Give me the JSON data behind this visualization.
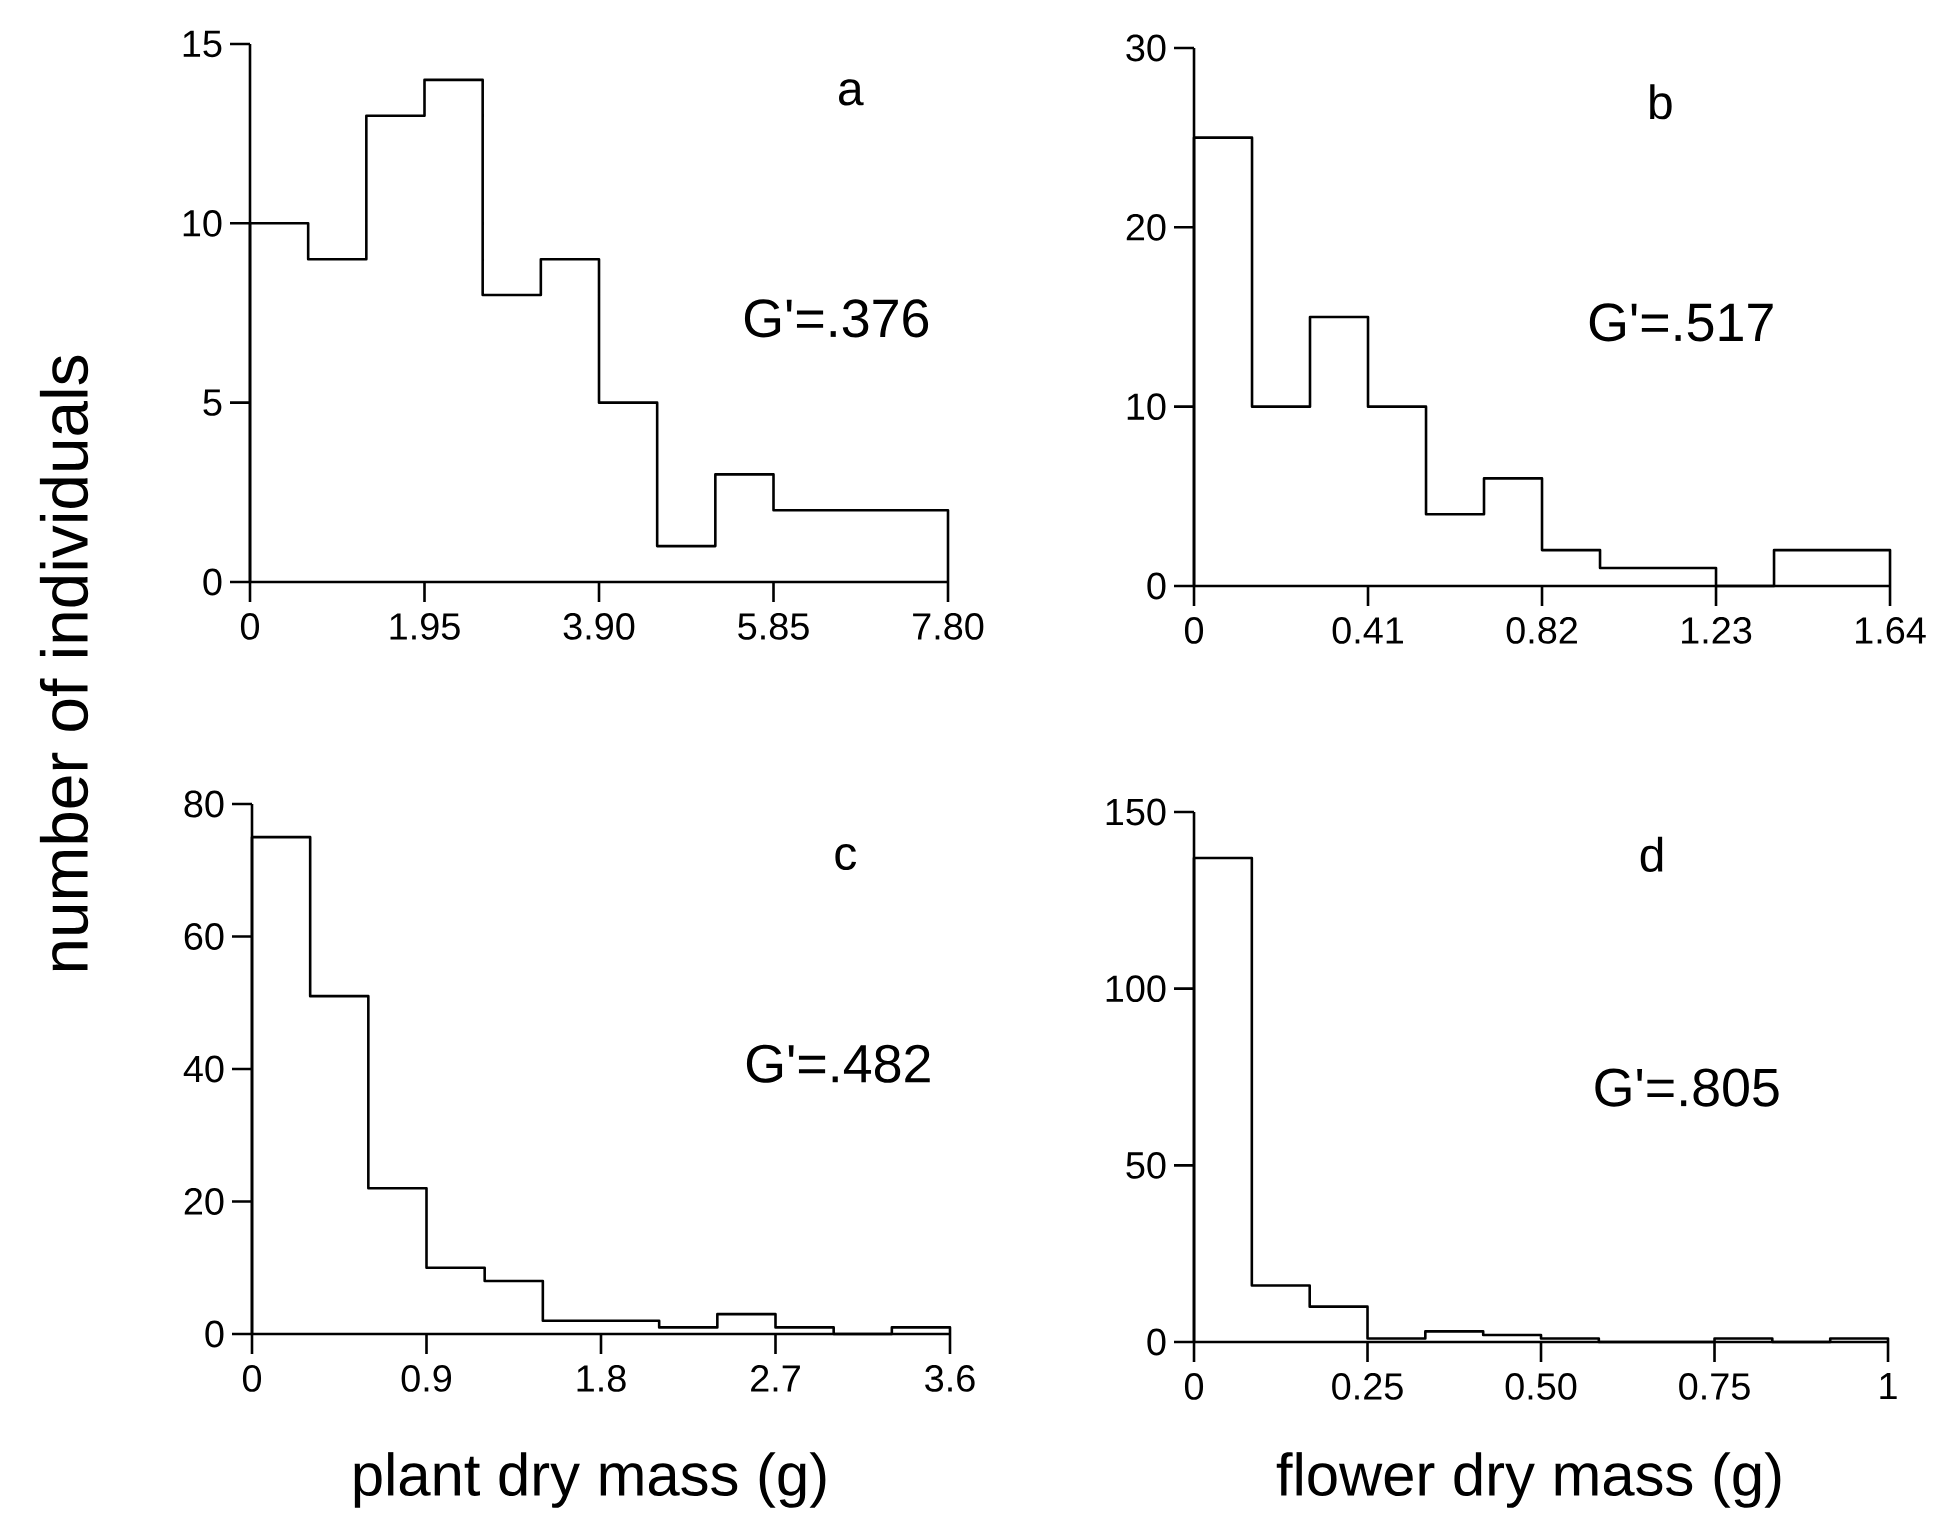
{
  "chart_data": [
    {
      "type": "histogram",
      "title": "a",
      "ylabel": "number of individuals",
      "annotations": [
        "G'=.376"
      ],
      "color": "#000000",
      "bins": [
        0,
        0.65,
        1.3,
        1.95,
        2.6,
        3.25,
        3.9,
        4.55,
        5.2,
        5.85,
        6.5,
        7.15,
        7.8
      ],
      "values": [
        10,
        9,
        13,
        14,
        8,
        9,
        5,
        1,
        3,
        2,
        2,
        2
      ],
      "xlim": [
        0,
        7.8
      ],
      "ylim": [
        0,
        15
      ],
      "xticks": [
        0,
        1.95,
        {
          "value": 3.9,
          "label": "3.90"
        },
        5.85,
        {
          "value": 7.8,
          "label": "7.80"
        }
      ],
      "yticks": [
        0,
        5,
        10,
        15
      ]
    },
    {
      "type": "histogram",
      "title": "b",
      "annotations": [
        "G'=.517"
      ],
      "color": "#000000",
      "bins": [
        0,
        0.1367,
        0.2733,
        0.41,
        0.5467,
        0.6833,
        0.82,
        0.9567,
        1.0933,
        1.23,
        1.3667,
        1.5033,
        1.64
      ],
      "values": [
        25,
        10,
        15,
        10,
        4,
        6,
        2,
        1,
        1,
        0,
        2,
        2
      ],
      "xlim": [
        0,
        1.64
      ],
      "ylim": [
        0,
        30
      ],
      "xticks": [
        0,
        0.41,
        0.82,
        1.23,
        1.64
      ],
      "yticks": [
        0,
        10,
        20,
        30
      ]
    },
    {
      "type": "histogram",
      "title": "c",
      "xlabel": "plant dry mass (g)",
      "annotations": [
        "G'=.482"
      ],
      "color": "#000000",
      "bins": [
        0,
        0.3,
        0.6,
        0.9,
        1.2,
        1.5,
        1.8,
        2.1,
        2.4,
        2.7,
        3.0,
        3.3,
        3.6
      ],
      "values": [
        75,
        51,
        22,
        10,
        8,
        2,
        2,
        1,
        3,
        1,
        0,
        1
      ],
      "xlim": [
        0,
        3.6
      ],
      "ylim": [
        0,
        80
      ],
      "xticks": [
        0,
        0.9,
        1.8,
        2.7,
        3.6
      ],
      "yticks": [
        0,
        20,
        40,
        60,
        80
      ]
    },
    {
      "type": "histogram",
      "title": "d",
      "xlabel": "flower dry mass (g)",
      "annotations": [
        "G'=.805"
      ],
      "color": "#000000",
      "bins": [
        0,
        0.0833,
        0.1667,
        0.25,
        0.3333,
        0.4167,
        0.5,
        0.5833,
        0.6667,
        0.75,
        0.8333,
        0.9167,
        1
      ],
      "values": [
        137,
        16,
        10,
        1,
        3,
        2,
        1,
        0,
        0,
        1,
        0,
        1
      ],
      "xlim": [
        0,
        1
      ],
      "ylim": [
        0,
        150
      ],
      "xticks": [
        0,
        0.25,
        {
          "value": 0.5,
          "label": "0.50"
        },
        0.75,
        1
      ],
      "yticks": [
        0,
        50,
        100,
        150
      ]
    }
  ]
}
